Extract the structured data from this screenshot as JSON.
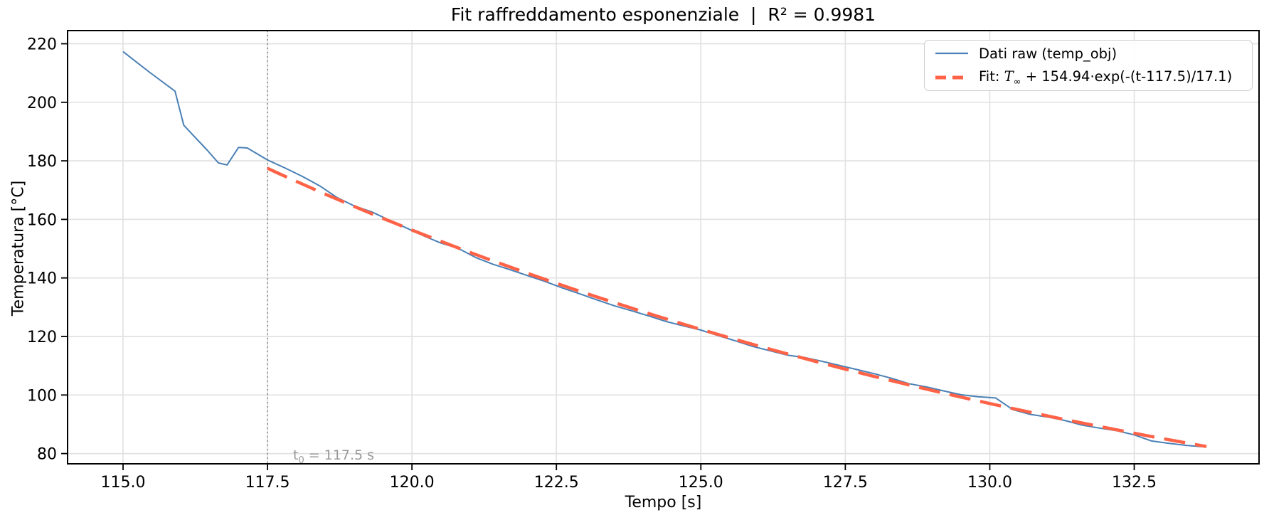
{
  "title": "Fit raffreddamento esponenziale  |  R² = 0.9981",
  "r_squared": "0.9981",
  "legend": {
    "raw_label": "Dati raw (temp_obj)",
    "fit_prefix": "Fit: ",
    "fit_T": "T",
    "fit_T_sub": "∞",
    "fit_rest": " + 154.94·exp(-(t-117.5)/17.1)"
  },
  "annotation": {
    "t": "t",
    "t_sub": "0",
    "rest": " = 117.5 s",
    "full_text": "t₀ = 117.5 s"
  },
  "chart_data": {
    "type": "line",
    "title": "Fit raffreddamento esponenziale  |  R² = 0.9981",
    "xlabel": "Tempo [s]",
    "ylabel": "Temperatura [°C]",
    "xlim": [
      114.04,
      134.66
    ],
    "ylim": [
      76.5,
      224.5
    ],
    "grid": true,
    "legend_position": "upper right",
    "colors": {
      "raw": "#4a80b5",
      "fit": "#ff6347",
      "grid": "#e2e2e2",
      "spine": "#000000",
      "t0_line": "#8c8c8c",
      "annotation": "#999999"
    },
    "x_ticks": [
      115.0,
      117.5,
      120.0,
      122.5,
      125.0,
      127.5,
      130.0,
      132.5
    ],
    "x_tick_labels": [
      "115.0",
      "117.5",
      "120.0",
      "122.5",
      "125.0",
      "127.5",
      "130.0",
      "132.5"
    ],
    "y_ticks": [
      80,
      100,
      120,
      140,
      160,
      180,
      200,
      220
    ],
    "y_tick_labels": [
      "80",
      "100",
      "120",
      "140",
      "160",
      "180",
      "200",
      "220"
    ],
    "annotations": {
      "t0_line": {
        "x": 117.5,
        "style": "dotted",
        "color": "#8c8c8c"
      },
      "t0_label": {
        "text": "t₀ = 117.5 s",
        "x": 117.95,
        "y": 79.5,
        "color": "#999999"
      }
    },
    "series": [
      {
        "name": "Dati raw (temp_obj)",
        "color": "#4a80b5",
        "style": "solid",
        "width": 2,
        "points": [
          [
            115.0,
            217.3
          ],
          [
            115.45,
            210.4
          ],
          [
            115.9,
            203.8
          ],
          [
            116.05,
            192.2
          ],
          [
            116.2,
            189.0
          ],
          [
            116.45,
            183.8
          ],
          [
            116.65,
            179.3
          ],
          [
            116.8,
            178.6
          ],
          [
            117.0,
            184.6
          ],
          [
            117.15,
            184.4
          ],
          [
            117.5,
            180.3
          ],
          [
            117.8,
            177.6
          ],
          [
            118.1,
            174.7
          ],
          [
            118.4,
            171.5
          ],
          [
            118.7,
            167.5
          ],
          [
            119.0,
            164.6
          ],
          [
            119.3,
            162.6
          ],
          [
            119.6,
            159.8
          ],
          [
            119.9,
            157.1
          ],
          [
            120.2,
            154.4
          ],
          [
            120.5,
            151.9
          ],
          [
            120.8,
            150.1
          ],
          [
            121.1,
            147.0
          ],
          [
            121.4,
            144.7
          ],
          [
            121.7,
            142.8
          ],
          [
            122.0,
            140.8
          ],
          [
            122.3,
            138.8
          ],
          [
            122.6,
            136.6
          ],
          [
            122.9,
            134.6
          ],
          [
            123.2,
            132.5
          ],
          [
            123.5,
            130.5
          ],
          [
            123.8,
            128.8
          ],
          [
            124.1,
            127.0
          ],
          [
            124.4,
            125.1
          ],
          [
            124.7,
            123.6
          ],
          [
            125.0,
            122.2
          ],
          [
            125.3,
            120.3
          ],
          [
            125.6,
            118.5
          ],
          [
            125.9,
            116.6
          ],
          [
            126.2,
            115.1
          ],
          [
            126.5,
            113.6
          ],
          [
            126.8,
            112.8
          ],
          [
            127.1,
            111.5
          ],
          [
            127.4,
            110.1
          ],
          [
            127.7,
            108.7
          ],
          [
            128.0,
            107.3
          ],
          [
            128.3,
            105.7
          ],
          [
            128.6,
            103.9
          ],
          [
            128.9,
            102.8
          ],
          [
            129.2,
            101.4
          ],
          [
            129.5,
            100.1
          ],
          [
            129.8,
            99.4
          ],
          [
            130.1,
            99.0
          ],
          [
            130.4,
            95.0
          ],
          [
            130.7,
            93.4
          ],
          [
            131.0,
            92.5
          ],
          [
            131.3,
            91.3
          ],
          [
            131.6,
            89.7
          ],
          [
            131.9,
            88.7
          ],
          [
            132.2,
            87.8
          ],
          [
            132.5,
            86.4
          ],
          [
            132.8,
            84.3
          ],
          [
            133.1,
            83.5
          ],
          [
            133.4,
            82.8
          ],
          [
            133.7,
            82.3
          ]
        ]
      },
      {
        "name": "Fit: T∞ + 154.94·exp(-(t-117.5)/17.1)",
        "color": "#ff6347",
        "style": "dashed",
        "width": 4.5,
        "dash": "30 14",
        "fit_params": {
          "T_inf": 22.5,
          "amplitude": 154.94,
          "t0": 117.5,
          "tau": 17.1,
          "t_start": 117.5,
          "t_end": 133.75
        }
      }
    ]
  }
}
